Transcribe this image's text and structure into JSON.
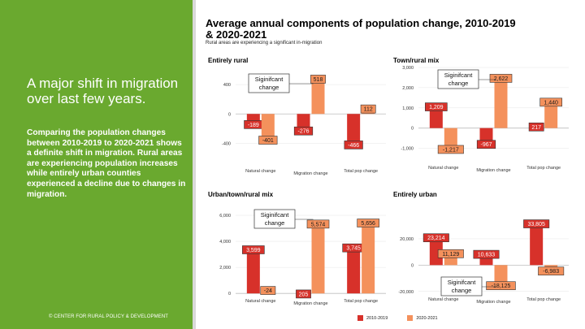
{
  "sidebar": {
    "headline": "A major shift in migration over last few years.",
    "body": "Comparing the population changes between 2010-2019 to 2020-2021 shows a definite shift in migration. Rural areas are experiencing population increases while entirely urban counties experienced a decline due to changes in migration.",
    "footer": "© CENTER FOR RURAL POLICY & DEVELOPMENT"
  },
  "header": {
    "title": "Average annual components of population change, 2010-2019 & 2020-2021",
    "subtitle": "Rural areas are experiencing a significant in-migration"
  },
  "legend": [
    {
      "label": "2010-2019",
      "color": "#d7312a"
    },
    {
      "label": "2020-2021",
      "color": "#f4915c"
    }
  ],
  "colors": {
    "dark": "#d7312a",
    "light": "#f4915c",
    "sidebar": "#6aa92f"
  },
  "chart_data": [
    {
      "type": "bar",
      "title": "Entirely rural",
      "categories": [
        "Natural change",
        "Migration change",
        "Total pop change"
      ],
      "series": [
        {
          "name": "2010-2019",
          "values": [
            -189,
            -276,
            -466
          ],
          "labels": [
            "-189",
            "-276",
            "-466"
          ]
        },
        {
          "name": "2020-2021",
          "values": [
            -401,
            518,
            112
          ],
          "labels": [
            "-401",
            "518",
            "112"
          ]
        }
      ],
      "ylim": [
        -550,
        600
      ],
      "yticks": [
        -400,
        0,
        400
      ],
      "ytick_labels": [
        "-400",
        "0",
        "400"
      ],
      "annotation": "Siginifcant change",
      "grid": true
    },
    {
      "type": "bar",
      "title": "Town/rural mix",
      "categories": [
        "Natural change",
        "Migration change",
        "Total pop change"
      ],
      "series": [
        {
          "name": "2010-2019",
          "values": [
            1209,
            -967,
            217
          ],
          "labels": [
            "1,209",
            "-967",
            "217"
          ]
        },
        {
          "name": "2020-2021",
          "values": [
            -1217,
            2622,
            1440
          ],
          "labels": [
            "-1,217",
            "2,622",
            "1,440"
          ]
        }
      ],
      "ylim": [
        -1500,
        3000
      ],
      "yticks": [
        -1000,
        0,
        1000,
        2000,
        3000
      ],
      "ytick_labels": [
        "-1,000",
        "0",
        "1,000",
        "2,000",
        "3,000"
      ],
      "annotation": "Siginifcant change",
      "grid": true
    },
    {
      "type": "bar",
      "title": "Urban/town/rural mix",
      "categories": [
        "Natural change",
        "Migration change",
        "Total pop change"
      ],
      "series": [
        {
          "name": "2010-2019",
          "values": [
            3599,
            205,
            3745
          ],
          "labels": [
            "3,599",
            "205",
            "3,745"
          ]
        },
        {
          "name": "2020-2021",
          "values": [
            -24,
            5574,
            5656
          ],
          "labels": [
            "-24",
            "5,574",
            "5,656"
          ]
        }
      ],
      "ylim": [
        -300,
        6500
      ],
      "yticks": [
        0,
        2000,
        4000,
        6000
      ],
      "ytick_labels": [
        "0",
        "2,000",
        "4,000",
        "6,000"
      ],
      "annotation": "Siginifcant change",
      "grid": true
    },
    {
      "type": "bar",
      "title": "Entirely urban",
      "categories": [
        "Natural change",
        "Migration change",
        "Total pop change"
      ],
      "series": [
        {
          "name": "2010-2019",
          "values": [
            23214,
            10633,
            33805
          ],
          "labels": [
            "23,214",
            "10,633",
            "33,805"
          ]
        },
        {
          "name": "2020-2021",
          "values": [
            11129,
            -18125,
            -6983
          ],
          "labels": [
            "11,129",
            "-18,125",
            "-6,983"
          ]
        }
      ],
      "ylim": [
        -22000,
        36000
      ],
      "yticks": [
        -20000,
        0,
        20000
      ],
      "ytick_labels": [
        "-20,000",
        "0",
        "20,000"
      ],
      "annotation": "Siginifcant change",
      "grid": true
    }
  ]
}
